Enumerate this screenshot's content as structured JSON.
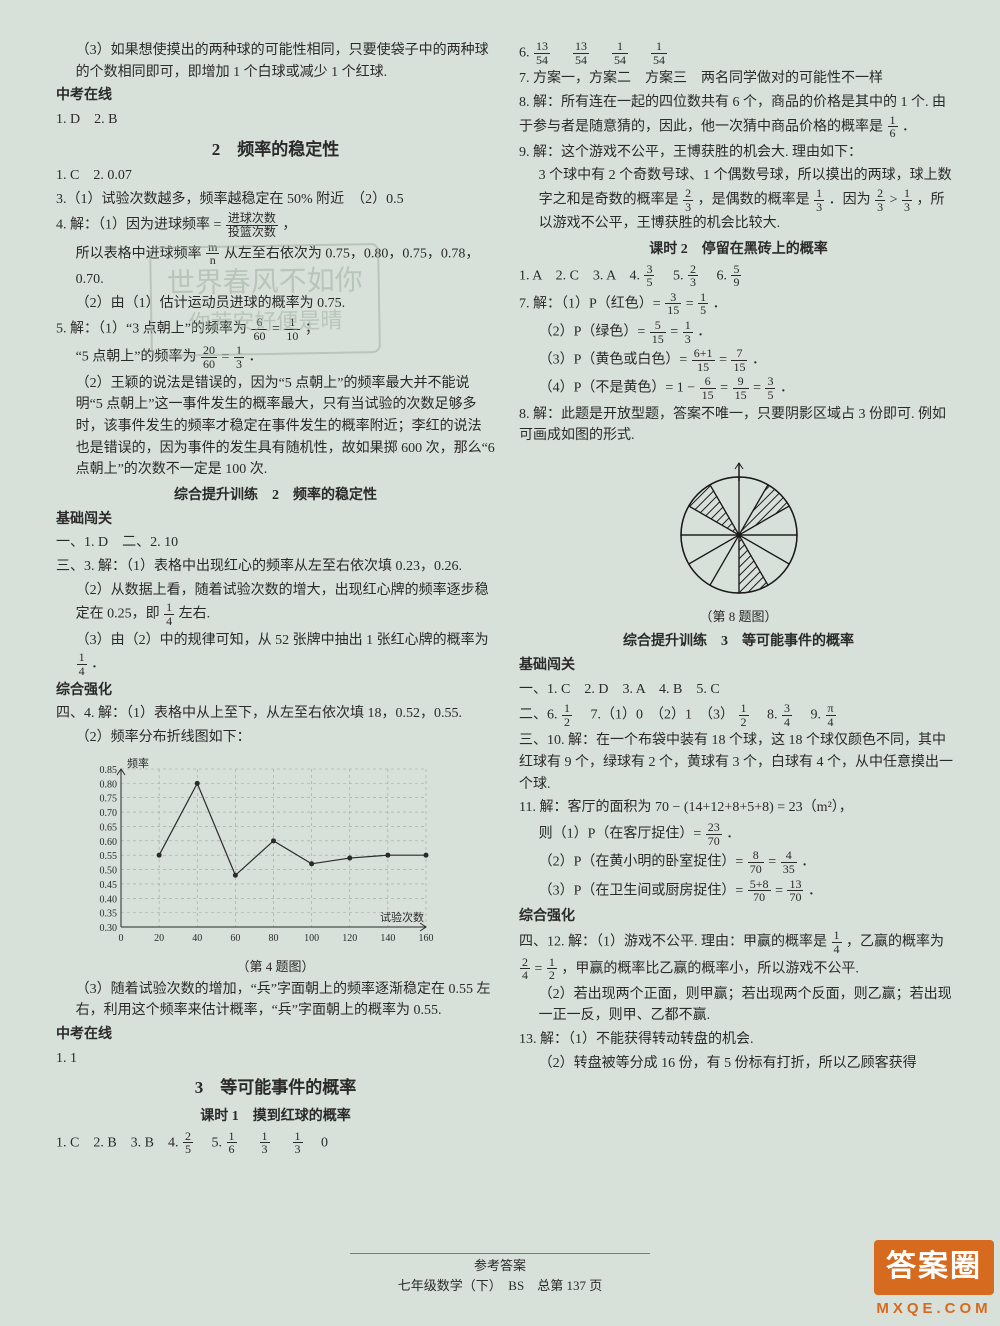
{
  "left": {
    "p3": "（3）如果想使摸出的两种球的可能性相同，只要使袋子中的两种球的个数相同即可，即增加 1 个白球或减少 1 个红球.",
    "zk": "中考在线",
    "zk1": "1. D　2. B",
    "sec2_title": "2　频率的稳定性",
    "s2_1": "1. C　2. 0.07",
    "s2_3": "3.（1）试验次数越多，频率越稳定在 50% 附近　（2）0.5",
    "s2_4a": "4. 解：（1）因为进球频率 = ",
    "s2_4_frac_n": "进球次数",
    "s2_4_frac_d": "投篮次数",
    "s2_4b": "，",
    "s2_4c": "所以表格中进球频率 ",
    "s2_4c_n": "m",
    "s2_4c_d": "n",
    "s2_4c2": " 从左至右依次为 0.75，0.80，0.75，0.78，",
    "s2_4d": "0.70.",
    "s2_4e": "（2）由（1）估计运动员进球的概率为 0.75.",
    "s2_5a": "5. 解：（1）“3 点朝上”的频率为 ",
    "s2_5a_n": "6",
    "s2_5a_d": "60",
    "s2_5a2": " = ",
    "s2_5a3_n": "1",
    "s2_5a3_d": "10",
    "s2_5a4": "；",
    "s2_5b": "“5 点朝上”的频率为 ",
    "s2_5b_n": "20",
    "s2_5b_d": "60",
    "s2_5b2": " = ",
    "s2_5b3_n": "1",
    "s2_5b3_d": "3",
    "s2_5b4": "．",
    "s2_5c": "（2）王颖的说法是错误的，因为“5 点朝上”的频率最大并不能说明“5 点朝上”这一事件发生的概率最大，只有当试验的次数足够多时，该事件发生的频率才稳定在事件发生的概率附近；李红的说法也是错误的，因为事件的发生具有随机性，故如果掷 600 次，那么“6 点朝上”的次数不一定是 100 次.",
    "sub2_title": "综合提升训练　2　频率的稳定性",
    "jcbg": "基础闯关",
    "jc_1": "一、1. D　二、2. 10",
    "jc_3a": "三、3. 解：（1）表格中出现红心的频率从左至右依次填 0.23，0.26.",
    "jc_3b": "（2）从数据上看，随着试验次数的增大，出现红心牌的频率逐步稳定在 0.25，即 ",
    "jc_3b_n": "1",
    "jc_3b_d": "4",
    "jc_3b2": " 左右.",
    "jc_3c": "（3）由（2）中的规律可知，从 52 张牌中抽出 1 张红心牌的概率为 ",
    "jc_3c_n": "1",
    "jc_3c_d": "4",
    "jc_3c2": "．",
    "zhqh": "综合强化",
    "zh_4a": "四、4. 解：（1）表格中从上至下，从左至右依次填 18，0.52，0.55.",
    "zh_4b": "（2）频率分布折线图如下：",
    "zh_4c": "（3）随着试验次数的增加，“兵”字面朝上的频率逐渐稳定在 0.55 左右，利用这个频率来估计概率，“兵”字面朝上的概率为 0.55.",
    "zk2": "中考在线",
    "zk2_1": "1. 1",
    "sec3_title": "3　等可能事件的概率",
    "sec3_k1": "课时 1　摸到红球的概率",
    "k1_line": "1. C　2. B　3. B　4. ",
    "k1_4n": "2",
    "k1_4d": "5",
    "k1_5": "　5. ",
    "k1_5an": "1",
    "k1_5ad": "6",
    "k1_5b": "　",
    "k1_5bn": "1",
    "k1_5bd": "3",
    "k1_5c": "　",
    "k1_5cn": "1",
    "k1_5cd": "3",
    "k1_5d": "　0"
  },
  "right": {
    "r6a": "6. ",
    "r6n1": "13",
    "r6d1": "54",
    "r6s1": "　",
    "r6n2": "13",
    "r6d2": "54",
    "r6s2": "　",
    "r6n3": "1",
    "r6d3": "54",
    "r6s3": "　",
    "r6n4": "1",
    "r6d4": "54",
    "r7": "7. 方案一，方案二　方案三　两名同学做对的可能性不一样",
    "r8a": "8. 解：所有连在一起的四位数共有 6 个，商品的价格是其中的 1 个. 由于参与者是随意猜的，因此，他一次猜中商品价格的概率是 ",
    "r8n": "1",
    "r8d": "6",
    "r8b": "．",
    "r9a": "9. 解：这个游戏不公平，王博获胜的机会大. 理由如下：",
    "r9b": "3 个球中有 2 个奇数号球、1 个偶数号球，所以摸出的两球，球上数字之和是奇数的概率是 ",
    "r9bn": "2",
    "r9bd": "3",
    "r9c": "，是偶数的概率是 ",
    "r9cn": "1",
    "r9cd": "3",
    "r9d": "．因为 ",
    "r9dn": "2",
    "r9dd": "3",
    "r9e": " > ",
    "r9en": "1",
    "r9ed": "3",
    "r9f": "，所以游戏不公平，王博获胜的机会比较大.",
    "k2_title": "课时 2　停留在黑砖上的概率",
    "k2_1": "1. A　2. C　3. A　4. ",
    "k2_4n": "3",
    "k2_4d": "5",
    "k2_5": "　5. ",
    "k2_5n": "2",
    "k2_5d": "3",
    "k2_6": "　6. ",
    "k2_6n": "5",
    "k2_6d": "9",
    "k2_7a": "7. 解：（1）P（红色）= ",
    "k2_7an": "3",
    "k2_7ad": "15",
    "k2_7a2": " = ",
    "k2_7a3n": "1",
    "k2_7a3d": "5",
    "k2_7a4": "．",
    "k2_7b": "（2）P（绿色）= ",
    "k2_7bn": "5",
    "k2_7bd": "15",
    "k2_7b2": " = ",
    "k2_7b3n": "1",
    "k2_7b3d": "3",
    "k2_7b4": "．",
    "k2_7c": "（3）P（黄色或白色）= ",
    "k2_7cn": "6+1",
    "k2_7cd": "15",
    "k2_7c2": " = ",
    "k2_7c3n": "7",
    "k2_7c3d": "15",
    "k2_7c4": "．",
    "k2_7d": "（4）P（不是黄色）= 1 − ",
    "k2_7dn": "6",
    "k2_7dd": "15",
    "k2_7d2": " = ",
    "k2_7d3n": "9",
    "k2_7d3d": "15",
    "k2_7d4": " = ",
    "k2_7d5n": "3",
    "k2_7d5d": "5",
    "k2_7d6": "．",
    "k2_8": "8. 解：此题是开放型题，答案不唯一，只要阴影区域占 3 份即可. 例如可画成如图的形式.",
    "pie_caption": "（第 8 题图）",
    "sub3_title": "综合提升训练　3　等可能事件的概率",
    "jcbg": "基础闯关",
    "j1": "一、1. C　2. D　3. A　4. B　5. C",
    "j2a": "二、6. ",
    "j2an": "1",
    "j2ad": "2",
    "j2b": "　7.（1）0　（2）1　（3）",
    "j2bn": "1",
    "j2bd": "2",
    "j2c": "　8. ",
    "j2cn": "3",
    "j2cd": "4",
    "j2d": "　9. ",
    "j2dn": "π",
    "j2dd": "4",
    "j10": "三、10. 解：在一个布袋中装有 18 个球，这 18 个球仅颜色不同，其中红球有 9 个，绿球有 2 个，黄球有 3 个，白球有 4 个，从中任意摸出一个球.",
    "j11a": "11. 解：客厅的面积为 70 − (14+12+8+5+8) = 23（m²），",
    "j11b": "则（1）P（在客厅捉住）= ",
    "j11bn": "23",
    "j11bd": "70",
    "j11b2": "．",
    "j11c": "（2）P（在黄小明的卧室捉住）= ",
    "j11cn": "8",
    "j11cd": "70",
    "j11c2": " = ",
    "j11c3n": "4",
    "j11c3d": "35",
    "j11c4": "．",
    "j11d": "（3）P（在卫生间或厨房捉住）= ",
    "j11dn": "5+8",
    "j11dd": "70",
    "j11d2": " = ",
    "j11d3n": "13",
    "j11d3d": "70",
    "j11d4": "．",
    "zhqh": "综合强化",
    "z12a": "四、12. 解：（1）游戏不公平. 理由：甲赢的概率是 ",
    "z12an": "1",
    "z12ad": "4",
    "z12b": "，乙赢的概率为 ",
    "z12bn": "2",
    "z12bd": "4",
    "z12c": " = ",
    "z12cn": "1",
    "z12cd": "2",
    "z12d": "，甲赢的概率比乙赢的概率小，所以游戏不公平.",
    "z12e": "（2）若出现两个正面，则甲赢；若出现两个反面，则乙赢；若出现一正一反，则甲、乙都不赢.",
    "z13a": "13. 解：（1）不能获得转动转盘的机会.",
    "z13b": "（2）转盘被等分成 16 份，有 5 份标有打折，所以乙顾客获得"
  },
  "chart": {
    "title": "频率",
    "x_title": "试验次数",
    "caption": "（第 4 题图）",
    "y_ticks": [
      "0.30",
      "0.35",
      "0.40",
      "0.45",
      "0.50",
      "0.55",
      "0.60",
      "0.65",
      "0.70",
      "0.75",
      "0.80",
      "0.85"
    ],
    "x_ticks": [
      "0",
      "20",
      "40",
      "60",
      "80",
      "100",
      "120",
      "140",
      "160"
    ],
    "x_vals": [
      20,
      40,
      60,
      80,
      100,
      120,
      140,
      160
    ],
    "y_vals": [
      0.55,
      0.8,
      0.48,
      0.6,
      0.52,
      0.54,
      0.55,
      0.55
    ],
    "line_color": "#2a2a2a",
    "grid_color": "#9aa79a",
    "bg": "#d8e0da"
  },
  "pie": {
    "slices": 12,
    "shaded": [
      1,
      5,
      10
    ],
    "line_color": "#1a1a1a",
    "hatch_color": "#1a1a1a"
  },
  "footer": {
    "l1": "参考答案",
    "l2": "七年级数学（下）　BS　总第 137 页"
  },
  "watermark": {
    "title": "答案圈",
    "sub": "MXQE.COM"
  },
  "stamp": {
    "l1": "世界春风不如你",
    "l2": "你若安好便是晴"
  }
}
